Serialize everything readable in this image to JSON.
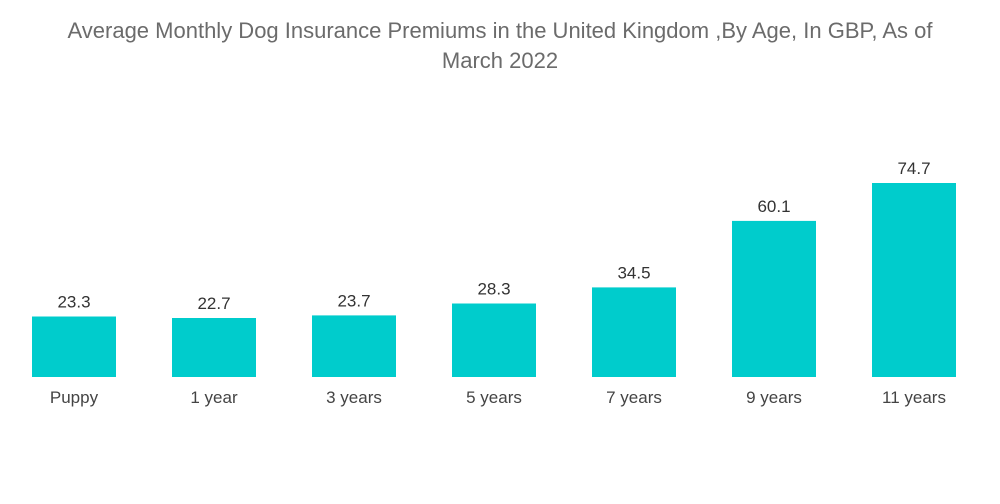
{
  "chart_data": {
    "type": "bar",
    "title_line1": "Average Monthly Dog Insurance Premiums in the United Kingdom ,By Age, In GBP, As of",
    "title_line2": "March 2022",
    "categories": [
      "Puppy",
      "1 year",
      "3 years",
      "5 years",
      "7 years",
      "9 years",
      "11 years"
    ],
    "values": [
      23.3,
      22.7,
      23.7,
      28.3,
      34.5,
      60.1,
      74.7
    ],
    "value_labels": [
      "23.3",
      "22.7",
      "23.7",
      "28.3",
      "34.5",
      "60.1",
      "74.7"
    ],
    "xlabel": "",
    "ylabel": "",
    "ylim": [
      0,
      74.7
    ],
    "grid": false,
    "legend": "none",
    "bar_color": "#00cccc"
  }
}
